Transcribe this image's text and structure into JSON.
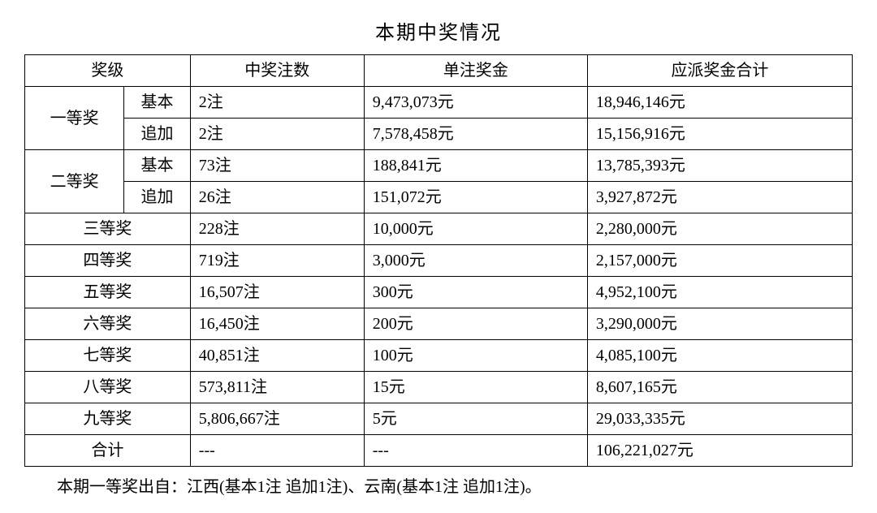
{
  "title": "本期中奖情况",
  "columns": {
    "level": "奖级",
    "bets": "中奖注数",
    "unit_prize": "单注奖金",
    "total_prize": "应派奖金合计"
  },
  "sub_labels": {
    "basic": "基本",
    "bonus": "追加"
  },
  "levels": {
    "first": "一等奖",
    "second": "二等奖",
    "third": "三等奖",
    "fourth": "四等奖",
    "fifth": "五等奖",
    "sixth": "六等奖",
    "seventh": "七等奖",
    "eighth": "八等奖",
    "ninth": "九等奖",
    "total": "合计"
  },
  "rows": {
    "first_basic": {
      "bets": "2注",
      "unit": "9,473,073元",
      "total": "18,946,146元"
    },
    "first_bonus": {
      "bets": "2注",
      "unit": "7,578,458元",
      "total": "15,156,916元"
    },
    "second_basic": {
      "bets": "73注",
      "unit": "188,841元",
      "total": "13,785,393元"
    },
    "second_bonus": {
      "bets": "26注",
      "unit": "151,072元",
      "total": "3,927,872元"
    },
    "third": {
      "bets": "228注",
      "unit": "10,000元",
      "total": "2,280,000元"
    },
    "fourth": {
      "bets": "719注",
      "unit": "3,000元",
      "total": "2,157,000元"
    },
    "fifth": {
      "bets": "16,507注",
      "unit": "300元",
      "total": "4,952,100元"
    },
    "sixth": {
      "bets": "16,450注",
      "unit": "200元",
      "total": "3,290,000元"
    },
    "seventh": {
      "bets": "40,851注",
      "unit": "100元",
      "total": "4,085,100元"
    },
    "eighth": {
      "bets": "573,811注",
      "unit": "15元",
      "total": "8,607,165元"
    },
    "ninth": {
      "bets": "5,806,667注",
      "unit": "5元",
      "total": "29,033,335元"
    },
    "total": {
      "bets": "---",
      "unit": "---",
      "total": "106,221,027元"
    }
  },
  "footnote": "本期一等奖出自：江西(基本1注 追加1注)、云南(基本1注 追加1注)。",
  "style": {
    "background_color": "#ffffff",
    "text_color": "#000000",
    "border_color": "#000000",
    "font_family": "SimSun",
    "title_fontsize": 24,
    "body_fontsize": 20,
    "col_widths_pct": [
      12,
      8,
      21,
      27,
      32
    ],
    "col_align": [
      "center",
      "center",
      "right",
      "right",
      "right"
    ]
  }
}
